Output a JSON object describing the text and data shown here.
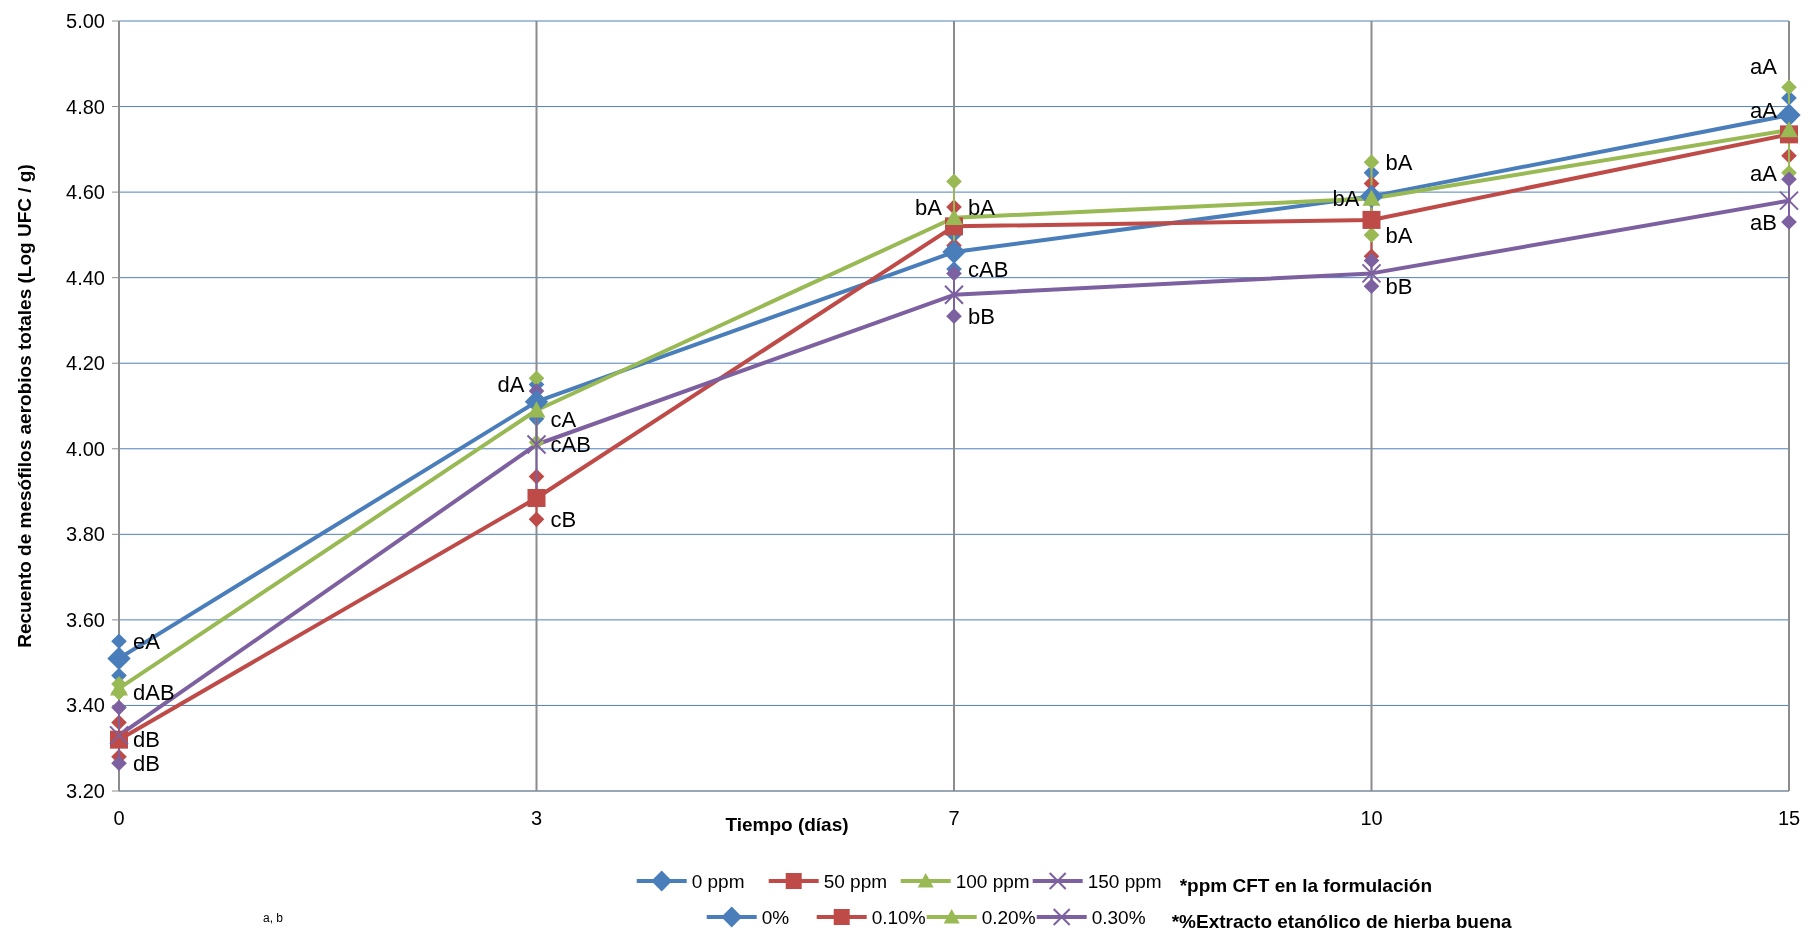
{
  "chart_data": {
    "type": "line",
    "xlabel": "Tiempo (días)",
    "ylabel": "Recuento de mesófilos aerobios totales (Log UFC / g)",
    "categories": [
      "0",
      "3",
      "7",
      "10",
      "15"
    ],
    "ylim": [
      3.2,
      5.0
    ],
    "yticks": [
      {
        "value": 3.2,
        "label": "3.20"
      },
      {
        "value": 3.4,
        "label": "3.40"
      },
      {
        "value": 3.6,
        "label": "3.60"
      },
      {
        "value": 3.8,
        "label": "3.80"
      },
      {
        "value": 4.0,
        "label": "4.00"
      },
      {
        "value": 4.2,
        "label": "4.20"
      },
      {
        "value": 4.4,
        "label": "4.40"
      },
      {
        "value": 4.6,
        "label": "4.60"
      },
      {
        "value": 4.8,
        "label": "4.80"
      },
      {
        "value": 5.0,
        "label": "5.00"
      }
    ],
    "grid": true,
    "legend": "bottom",
    "series": [
      {
        "name": "0 ppm",
        "color": "#4a7ebb",
        "marker": "diamond",
        "values": [
          3.51,
          4.11,
          4.46,
          4.59,
          4.78
        ],
        "errors": [
          0.04,
          0.04,
          0.04,
          0.055,
          0.04
        ]
      },
      {
        "name": "50 ppm",
        "color": "#be4b48",
        "marker": "square",
        "values": [
          3.32,
          3.885,
          4.52,
          4.535,
          4.735
        ],
        "errors": [
          0.04,
          0.05,
          0.045,
          0.085,
          0.05
        ]
      },
      {
        "name": "100 ppm",
        "color": "#98b954",
        "marker": "triangle",
        "values": [
          3.44,
          4.09,
          4.54,
          4.585,
          4.745
        ],
        "errors": [
          0.01,
          0.075,
          0.085,
          0.085,
          0.1
        ]
      },
      {
        "name": "150 ppm",
        "color": "#7d60a0",
        "marker": "cross",
        "values": [
          3.33,
          4.01,
          4.36,
          4.41,
          4.58
        ],
        "errors": [
          0.065,
          0.125,
          0.05,
          0.03,
          0.05
        ]
      }
    ],
    "annotations": [
      {
        "text": "eA",
        "x": "0",
        "y": 3.55
      },
      {
        "text": "dAB",
        "x": "0",
        "y": 3.43
      },
      {
        "text": "dB",
        "x": "0",
        "y": 3.32
      },
      {
        "text": "dB",
        "x": "0",
        "y": 3.265
      },
      {
        "text": "dA",
        "x": "3",
        "y": 4.15
      },
      {
        "text": "cA",
        "x": "3",
        "y": 4.07
      },
      {
        "text": "cAB",
        "x": "3",
        "y": 4.01
      },
      {
        "text": "cB",
        "x": "3",
        "y": 3.835
      },
      {
        "text": "bA",
        "x": "7",
        "y": 4.565
      },
      {
        "text": "bA",
        "x": "7",
        "y": 4.565
      },
      {
        "text": "cAB",
        "x": "7",
        "y": 4.42
      },
      {
        "text": "bB",
        "x": "7",
        "y": 4.31
      },
      {
        "text": "bA",
        "x": "10",
        "y": 4.585
      },
      {
        "text": "bA",
        "x": "10",
        "y": 4.67
      },
      {
        "text": "bA",
        "x": "10",
        "y": 4.5
      },
      {
        "text": "bB",
        "x": "10",
        "y": 4.38
      },
      {
        "text": "aA",
        "x": "15",
        "y": 4.845
      },
      {
        "text": "aA",
        "x": "15",
        "y": 4.82
      },
      {
        "text": "aA",
        "x": "15",
        "y": 4.645
      },
      {
        "text": "aB",
        "x": "15",
        "y": 4.53
      },
      "*ppm CFT en la formulación",
      "0%",
      "0.10%",
      "0.20%",
      "0.30%",
      "*%Extracto etanólico de hierba buena",
      "$^{a, b}$"
    ]
  }
}
